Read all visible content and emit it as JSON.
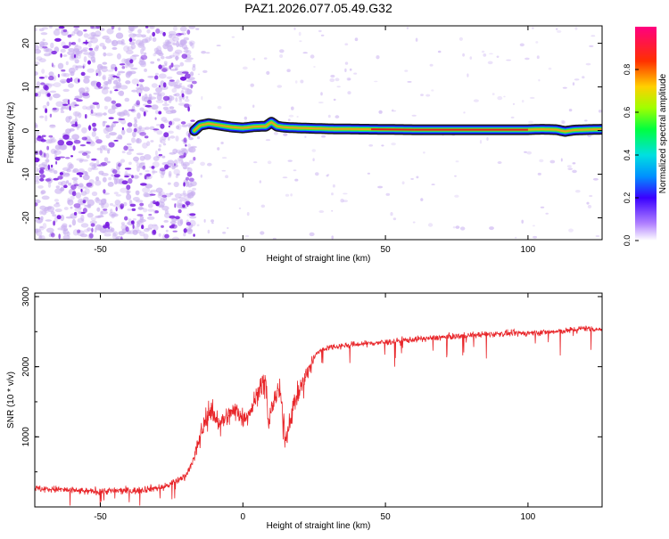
{
  "page_title": "PAZ1.2026.077.05.49.G32",
  "colors": {
    "axis": "#000000",
    "snr_line": "#e8262a",
    "spec_cloud": "#7a1fe0",
    "spec_cloud_light": "#c9b0f0",
    "trace_outer": "#1a1aff",
    "trace_mid": "#00c8c8",
    "trace_inner": "#5ae020",
    "trace_core": "#e8a020",
    "trace_hot": "#e02020"
  },
  "chart_data": [
    {
      "type": "heatmap",
      "title": "PAZ1.2026.077.05.49.G32",
      "xlabel": "Height of straight line (km)",
      "ylabel": "Frequency (Hz)",
      "xlim": [
        -73,
        126
      ],
      "ylim": [
        -25,
        24
      ],
      "xticks": [
        -50,
        0,
        50,
        100
      ],
      "yticks": [
        -20,
        -10,
        0,
        10,
        20
      ],
      "noise_region_x": [
        -73,
        -17
      ],
      "trace": {
        "x": [
          -17,
          -15,
          -12,
          -8,
          -4,
          0,
          4,
          8,
          10,
          12,
          14,
          16,
          20,
          30,
          45,
          60,
          80,
          100,
          105,
          110,
          113,
          116,
          120,
          126
        ],
        "freq_hz": [
          0,
          1.2,
          1.6,
          1.2,
          0.8,
          0.6,
          0.9,
          1.0,
          1.9,
          1.0,
          0.8,
          0.7,
          0.6,
          0.4,
          0.3,
          0.2,
          0.2,
          0.2,
          0.3,
          0.2,
          -0.2,
          0.1,
          0.2,
          0.3
        ],
        "normalized_amplitude": [
          0.3,
          0.45,
          0.5,
          0.5,
          0.55,
          0.55,
          0.55,
          0.6,
          0.55,
          0.6,
          0.6,
          0.62,
          0.7,
          0.75,
          0.8,
          0.85,
          0.9,
          0.8,
          0.6,
          0.55,
          0.5,
          0.6,
          0.7,
          0.7
        ]
      },
      "colorbar": {
        "label": "Normalized spectral amplitude",
        "ticks": [
          "0.0",
          "0.2",
          "0.4",
          "0.6",
          "0.8"
        ],
        "range": [
          0,
          1
        ]
      }
    },
    {
      "type": "line",
      "xlabel": "Height of straight line (km)",
      "ylabel": "SNR (10 * v/v)",
      "xlim": [
        -73,
        126
      ],
      "ylim": [
        0,
        3050
      ],
      "xticks": [
        -50,
        0,
        50,
        100
      ],
      "yticks": [
        1000,
        2000,
        3000
      ],
      "series": [
        {
          "name": "SNR",
          "x": [
            -73,
            -65,
            -55,
            -45,
            -38,
            -33,
            -28,
            -24,
            -20,
            -17,
            -15,
            -12,
            -8,
            -5,
            -2,
            0,
            3,
            6,
            8,
            9,
            11,
            13,
            15,
            18,
            22,
            26,
            30,
            40,
            50,
            60,
            70,
            80,
            90,
            100,
            110,
            115,
            120,
            126
          ],
          "y": [
            260,
            250,
            220,
            230,
            230,
            260,
            280,
            350,
            450,
            700,
            1000,
            1400,
            1200,
            1300,
            1400,
            1250,
            1400,
            1700,
            1800,
            1200,
            1550,
            1650,
            950,
            1500,
            1850,
            2200,
            2280,
            2320,
            2350,
            2390,
            2420,
            2450,
            2470,
            2480,
            2500,
            2520,
            2550,
            2530
          ]
        }
      ]
    }
  ]
}
